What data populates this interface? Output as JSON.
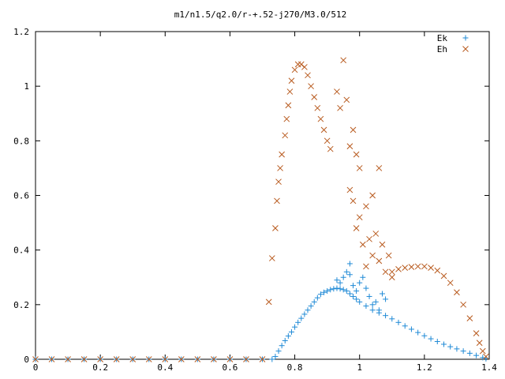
{
  "chart_data": {
    "type": "scatter",
    "title": "m1/n1.5/q2.0/r-+.52-j270/M3.0/512",
    "xlabel": "",
    "ylabel": "",
    "xlim": [
      0,
      1.4
    ],
    "ylim": [
      0,
      1.2
    ],
    "xticks": [
      0,
      0.2,
      0.4,
      0.6,
      0.8,
      1,
      1.2,
      1.4
    ],
    "xtick_labels": [
      "0",
      "0.2",
      "0.4",
      "0.6",
      "0.8",
      "1",
      "1.2",
      "1.4"
    ],
    "yticks": [
      0,
      0.2,
      0.4,
      0.6,
      0.8,
      1,
      1.2
    ],
    "ytick_labels": [
      "0",
      "0.2",
      "0.4",
      "0.6",
      "0.8",
      "1",
      "1.2"
    ],
    "grid": false,
    "legend_position": "top-right",
    "series": [
      {
        "name": "Ek",
        "marker": "plus",
        "color": "#1f8ad6",
        "points": [
          [
            0.0,
            0.0
          ],
          [
            0.05,
            0.0
          ],
          [
            0.1,
            0.0
          ],
          [
            0.15,
            0.0
          ],
          [
            0.2,
            0.0
          ],
          [
            0.25,
            0.0
          ],
          [
            0.3,
            0.0
          ],
          [
            0.35,
            0.0
          ],
          [
            0.4,
            0.0
          ],
          [
            0.45,
            0.0
          ],
          [
            0.5,
            0.0
          ],
          [
            0.55,
            0.0
          ],
          [
            0.6,
            0.0
          ],
          [
            0.65,
            0.0
          ],
          [
            0.7,
            0.0
          ],
          [
            0.73,
            0.0
          ],
          [
            0.74,
            0.01
          ],
          [
            0.75,
            0.03
          ],
          [
            0.76,
            0.05
          ],
          [
            0.77,
            0.068
          ],
          [
            0.78,
            0.085
          ],
          [
            0.79,
            0.1
          ],
          [
            0.8,
            0.118
          ],
          [
            0.81,
            0.135
          ],
          [
            0.82,
            0.15
          ],
          [
            0.83,
            0.165
          ],
          [
            0.84,
            0.18
          ],
          [
            0.85,
            0.195
          ],
          [
            0.86,
            0.21
          ],
          [
            0.87,
            0.225
          ],
          [
            0.88,
            0.238
          ],
          [
            0.89,
            0.245
          ],
          [
            0.9,
            0.25
          ],
          [
            0.91,
            0.255
          ],
          [
            0.92,
            0.258
          ],
          [
            0.93,
            0.26
          ],
          [
            0.94,
            0.258
          ],
          [
            0.95,
            0.255
          ],
          [
            0.96,
            0.25
          ],
          [
            0.97,
            0.24
          ],
          [
            0.98,
            0.23
          ],
          [
            0.99,
            0.22
          ],
          [
            1.0,
            0.21
          ],
          [
            1.02,
            0.195
          ],
          [
            1.04,
            0.18
          ],
          [
            1.06,
            0.17
          ],
          [
            1.08,
            0.16
          ],
          [
            1.1,
            0.148
          ],
          [
            1.12,
            0.135
          ],
          [
            1.14,
            0.122
          ],
          [
            1.16,
            0.11
          ],
          [
            1.18,
            0.098
          ],
          [
            1.2,
            0.086
          ],
          [
            1.22,
            0.075
          ],
          [
            1.24,
            0.065
          ],
          [
            1.26,
            0.055
          ],
          [
            1.28,
            0.046
          ],
          [
            1.3,
            0.038
          ],
          [
            1.32,
            0.03
          ],
          [
            1.34,
            0.022
          ],
          [
            1.36,
            0.014
          ],
          [
            1.38,
            0.006
          ],
          [
            1.39,
            0.002
          ],
          [
            0.93,
            0.29
          ],
          [
            0.94,
            0.28
          ],
          [
            0.95,
            0.3
          ],
          [
            0.96,
            0.32
          ],
          [
            0.97,
            0.31
          ],
          [
            0.98,
            0.27
          ],
          [
            0.99,
            0.25
          ],
          [
            1.0,
            0.28
          ],
          [
            0.97,
            0.35
          ],
          [
            1.01,
            0.3
          ],
          [
            1.03,
            0.23
          ],
          [
            1.05,
            0.21
          ],
          [
            1.07,
            0.24
          ],
          [
            1.02,
            0.26
          ],
          [
            1.04,
            0.2
          ],
          [
            1.06,
            0.18
          ],
          [
            1.08,
            0.22
          ]
        ]
      },
      {
        "name": "Eh",
        "marker": "cross",
        "color": "#b85a1e",
        "points": [
          [
            0.0,
            0.0
          ],
          [
            0.05,
            0.0
          ],
          [
            0.1,
            0.0
          ],
          [
            0.15,
            0.0
          ],
          [
            0.2,
            0.0
          ],
          [
            0.25,
            0.0
          ],
          [
            0.3,
            0.0
          ],
          [
            0.35,
            0.0
          ],
          [
            0.4,
            0.0
          ],
          [
            0.45,
            0.0
          ],
          [
            0.5,
            0.0
          ],
          [
            0.55,
            0.0
          ],
          [
            0.6,
            0.0
          ],
          [
            0.65,
            0.0
          ],
          [
            0.7,
            0.0
          ],
          [
            0.72,
            0.21
          ],
          [
            0.73,
            0.37
          ],
          [
            0.74,
            0.48
          ],
          [
            0.745,
            0.58
          ],
          [
            0.75,
            0.65
          ],
          [
            0.755,
            0.7
          ],
          [
            0.76,
            0.75
          ],
          [
            0.77,
            0.82
          ],
          [
            0.775,
            0.88
          ],
          [
            0.78,
            0.93
          ],
          [
            0.785,
            0.98
          ],
          [
            0.79,
            1.02
          ],
          [
            0.8,
            1.06
          ],
          [
            0.81,
            1.08
          ],
          [
            0.82,
            1.08
          ],
          [
            0.83,
            1.07
          ],
          [
            0.84,
            1.04
          ],
          [
            0.85,
            1.0
          ],
          [
            0.86,
            0.96
          ],
          [
            0.87,
            0.92
          ],
          [
            0.88,
            0.88
          ],
          [
            0.89,
            0.84
          ],
          [
            0.9,
            0.8
          ],
          [
            0.91,
            0.77
          ],
          [
            0.95,
            1.095
          ],
          [
            0.93,
            0.98
          ],
          [
            0.94,
            0.92
          ],
          [
            0.96,
            0.95
          ],
          [
            0.97,
            0.78
          ],
          [
            0.98,
            0.84
          ],
          [
            0.99,
            0.75
          ],
          [
            1.0,
            0.7
          ],
          [
            0.97,
            0.62
          ],
          [
            0.98,
            0.58
          ],
          [
            1.0,
            0.52
          ],
          [
            1.02,
            0.56
          ],
          [
            1.04,
            0.6
          ],
          [
            1.06,
            0.7
          ],
          [
            1.03,
            0.44
          ],
          [
            1.05,
            0.46
          ],
          [
            1.07,
            0.42
          ],
          [
            1.09,
            0.38
          ],
          [
            1.01,
            0.42
          ],
          [
            0.99,
            0.48
          ],
          [
            1.04,
            0.38
          ],
          [
            1.08,
            0.32
          ],
          [
            1.1,
            0.3
          ],
          [
            1.06,
            0.36
          ],
          [
            1.02,
            0.34
          ],
          [
            1.1,
            0.32
          ],
          [
            1.12,
            0.33
          ],
          [
            1.14,
            0.335
          ],
          [
            1.16,
            0.338
          ],
          [
            1.18,
            0.34
          ],
          [
            1.2,
            0.34
          ],
          [
            1.22,
            0.335
          ],
          [
            1.24,
            0.325
          ],
          [
            1.26,
            0.305
          ],
          [
            1.28,
            0.28
          ],
          [
            1.3,
            0.245
          ],
          [
            1.32,
            0.2
          ],
          [
            1.34,
            0.15
          ],
          [
            1.36,
            0.095
          ],
          [
            1.37,
            0.06
          ],
          [
            1.38,
            0.03
          ],
          [
            1.39,
            0.01
          ]
        ]
      }
    ]
  }
}
